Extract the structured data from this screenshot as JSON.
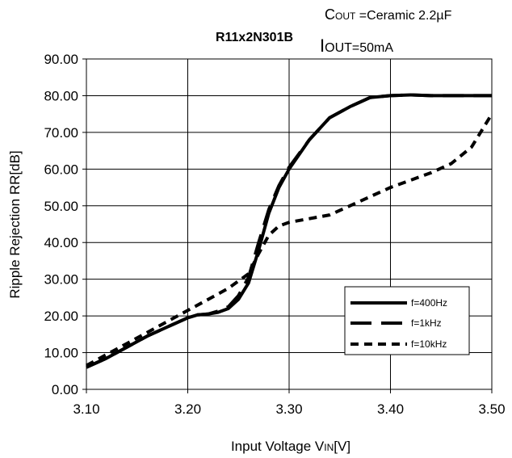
{
  "chart_data": {
    "type": "line",
    "title": "R11x2N301B",
    "conditions": {
      "cout_prefix": "C",
      "cout_sub": "OUT",
      "cout_rest": " =Ceramic 2.2µF",
      "iout_prefix": "I",
      "iout_sub": "OUT",
      "iout_rest": "=50mA"
    },
    "xlabel": {
      "main": "Input Voltage V",
      "sub": "IN",
      "unit": "[V]"
    },
    "ylabel": "Ripple Rejection RR[dB]",
    "xlim": [
      3.1,
      3.5
    ],
    "ylim": [
      0,
      90
    ],
    "xticks": [
      "3.10",
      "3.20",
      "3.30",
      "3.40",
      "3.50"
    ],
    "yticks": [
      "0.00",
      "10.00",
      "20.00",
      "30.00",
      "40.00",
      "50.00",
      "60.00",
      "70.00",
      "80.00",
      "90.00"
    ],
    "grid": true,
    "legend_position": "bottom-right",
    "series": [
      {
        "name": "f=400Hz",
        "style": "solid",
        "color": "#000000",
        "x": [
          3.1,
          3.12,
          3.14,
          3.16,
          3.18,
          3.2,
          3.21,
          3.22,
          3.23,
          3.24,
          3.25,
          3.26,
          3.27,
          3.28,
          3.29,
          3.3,
          3.32,
          3.34,
          3.36,
          3.38,
          3.4,
          3.42,
          3.44,
          3.46,
          3.48,
          3.5
        ],
        "y": [
          6.0,
          8.5,
          11.5,
          14.5,
          17.0,
          19.5,
          20.3,
          20.5,
          21.0,
          22.0,
          24.5,
          29.0,
          38.0,
          48.0,
          55.0,
          60.0,
          68.0,
          74.0,
          77.0,
          79.5,
          80.0,
          80.2,
          80.0,
          80.0,
          80.0,
          80.0
        ]
      },
      {
        "name": "f=1kHz",
        "style": "long-dash",
        "color": "#000000",
        "x": [
          3.1,
          3.12,
          3.14,
          3.16,
          3.18,
          3.2,
          3.21,
          3.22,
          3.23,
          3.24,
          3.25,
          3.26,
          3.27,
          3.28,
          3.29,
          3.3,
          3.32,
          3.34,
          3.36,
          3.38,
          3.4,
          3.42,
          3.44,
          3.46,
          3.48,
          3.5
        ],
        "y": [
          6.0,
          8.5,
          11.5,
          14.5,
          17.0,
          19.5,
          20.3,
          20.5,
          21.3,
          22.5,
          25.5,
          30.5,
          40.0,
          49.0,
          55.5,
          60.5,
          68.0,
          74.0,
          77.0,
          79.5,
          80.0,
          80.2,
          80.0,
          80.0,
          80.0,
          80.0
        ]
      },
      {
        "name": "f=10kHz",
        "style": "short-dash",
        "color": "#000000",
        "x": [
          3.1,
          3.12,
          3.14,
          3.16,
          3.18,
          3.2,
          3.22,
          3.24,
          3.26,
          3.27,
          3.28,
          3.29,
          3.3,
          3.32,
          3.34,
          3.36,
          3.38,
          3.4,
          3.42,
          3.44,
          3.46,
          3.48,
          3.5
        ],
        "y": [
          6.5,
          9.5,
          12.5,
          15.5,
          18.5,
          21.5,
          24.5,
          27.5,
          31.5,
          37.0,
          42.0,
          44.5,
          45.5,
          46.5,
          47.5,
          50.0,
          52.5,
          55.0,
          57.0,
          59.0,
          61.5,
          66.0,
          75.0
        ]
      }
    ]
  }
}
